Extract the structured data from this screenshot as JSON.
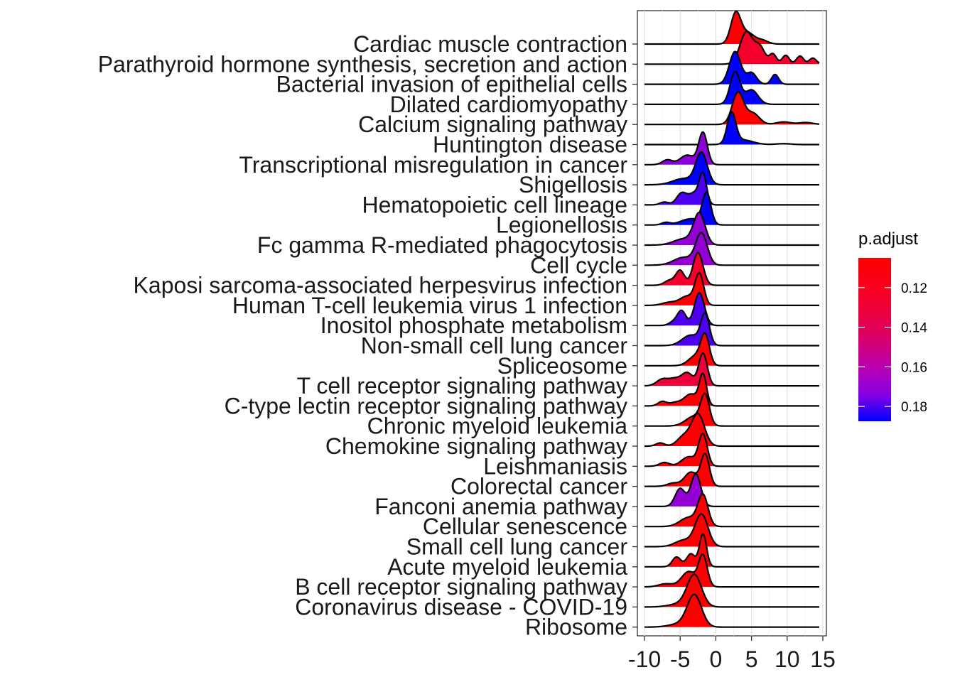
{
  "chart_data": {
    "type": "ridgeline",
    "x_ticks": [
      "-10",
      "-5",
      "0",
      "5",
      "10",
      "15"
    ],
    "x_tick_values": [
      -10,
      -5,
      0,
      5,
      10,
      15
    ],
    "xlim": [
      -11,
      15.5
    ],
    "grid": true,
    "legend": {
      "title": "p.adjust",
      "placement": "right",
      "range": [
        0.105,
        0.1875
      ],
      "ticks": [
        {
          "value": 0.12,
          "label": "0.12"
        },
        {
          "value": 0.14,
          "label": "0.14"
        },
        {
          "value": 0.16,
          "label": "0.16"
        },
        {
          "value": 0.18,
          "label": "0.18"
        }
      ],
      "color_low": "#ff0000",
      "color_high": "#0000ff"
    },
    "rows": [
      {
        "label": "Cardiac muscle contraction",
        "p_adjust": 0.107,
        "peaks": [
          [
            2.8,
            1.0,
            0.7
          ],
          [
            4.5,
            0.35,
            0.9
          ],
          [
            6.5,
            0.12,
            0.8
          ]
        ],
        "range": [
          -10,
          14.5
        ]
      },
      {
        "label": "Parathyroid hormone synthesis, secretion and action",
        "p_adjust": 0.125,
        "peaks": [
          [
            4.3,
            0.8,
            0.9
          ],
          [
            6.2,
            0.4,
            0.7
          ],
          [
            8.0,
            0.25,
            0.5
          ],
          [
            9.8,
            0.22,
            0.5
          ],
          [
            11.8,
            0.2,
            0.5
          ],
          [
            13.6,
            0.15,
            0.5
          ]
        ],
        "range": [
          -10,
          14.5
        ]
      },
      {
        "label": "Bacterial invasion of epithelial cells",
        "p_adjust": 0.188,
        "peaks": [
          [
            2.7,
            1.0,
            0.8
          ],
          [
            5.0,
            0.35,
            0.7
          ],
          [
            8.3,
            0.3,
            0.5
          ]
        ],
        "range": [
          -10,
          14.5
        ]
      },
      {
        "label": "Dilated cardiomyopathy",
        "p_adjust": 0.188,
        "peaks": [
          [
            2.7,
            1.0,
            0.7
          ],
          [
            5.0,
            0.45,
            0.9
          ]
        ],
        "range": [
          -10,
          14.5
        ]
      },
      {
        "label": "Calcium signaling pathway",
        "p_adjust": 0.105,
        "peaks": [
          [
            3.1,
            1.0,
            0.8
          ],
          [
            5.2,
            0.35,
            0.9
          ],
          [
            9.5,
            0.08,
            1.0
          ],
          [
            12.6,
            0.06,
            1.0
          ]
        ],
        "range": [
          -10,
          14.5
        ]
      },
      {
        "label": "Huntington disease",
        "p_adjust": 0.188,
        "peaks": [
          [
            2.2,
            1.0,
            0.6
          ],
          [
            3.8,
            0.15,
            1.4
          ],
          [
            9.5,
            0.03,
            1.0
          ]
        ],
        "range": [
          -10,
          14.5
        ]
      },
      {
        "label": "Transcriptional misregulation in cancer",
        "p_adjust": 0.172,
        "peaks": [
          [
            -1.8,
            1.0,
            0.6
          ],
          [
            -4.0,
            0.3,
            1.0
          ],
          [
            -6.8,
            0.15,
            0.7
          ]
        ],
        "range": [
          -10,
          14.5
        ]
      },
      {
        "label": "Shigellosis",
        "p_adjust": 0.188,
        "peaks": [
          [
            -2.0,
            1.0,
            0.8
          ],
          [
            -4.5,
            0.2,
            1.5
          ]
        ],
        "range": [
          -10,
          14.5
        ]
      },
      {
        "label": "Hematopoietic cell lineage",
        "p_adjust": 0.18,
        "peaks": [
          [
            -1.8,
            1.0,
            0.5
          ],
          [
            -4.8,
            0.4,
            0.7
          ],
          [
            -3.0,
            0.4,
            0.8
          ],
          [
            -7.2,
            0.1,
            0.6
          ]
        ],
        "range": [
          -10,
          14.5
        ]
      },
      {
        "label": "Legionellosis",
        "p_adjust": 0.188,
        "peaks": [
          [
            -1.3,
            1.0,
            0.6
          ],
          [
            -3.5,
            0.2,
            1.4
          ],
          [
            -7.0,
            0.08,
            0.6
          ]
        ],
        "range": [
          -10,
          14.5
        ]
      },
      {
        "label": "Fc gamma R-mediated phagocytosis",
        "p_adjust": 0.17,
        "peaks": [
          [
            -2.3,
            1.0,
            0.8
          ],
          [
            -4.5,
            0.2,
            1.4
          ]
        ],
        "range": [
          -10,
          14.5
        ]
      },
      {
        "label": "Cell cycle",
        "p_adjust": 0.17,
        "peaks": [
          [
            -2.0,
            1.0,
            0.8
          ],
          [
            -4.5,
            0.25,
            1.4
          ]
        ],
        "range": [
          -10,
          14.5
        ]
      },
      {
        "label": "Kaposi sarcoma-associated herpesvirus infection",
        "p_adjust": 0.125,
        "peaks": [
          [
            -2.5,
            1.0,
            0.7
          ],
          [
            -5.0,
            0.45,
            0.6
          ],
          [
            -6.5,
            0.15,
            0.7
          ]
        ],
        "range": [
          -10,
          14.5
        ]
      },
      {
        "label": "Human T-cell leukemia virus 1 infection",
        "p_adjust": 0.107,
        "peaks": [
          [
            -2.3,
            1.0,
            0.6
          ],
          [
            -4.0,
            0.3,
            1.0
          ],
          [
            -6.5,
            0.1,
            1.0
          ]
        ],
        "range": [
          -10,
          14.5
        ]
      },
      {
        "label": "Inositol phosphate metabolism",
        "p_adjust": 0.18,
        "peaks": [
          [
            -2.3,
            1.0,
            0.7
          ],
          [
            -4.8,
            0.45,
            0.6
          ],
          [
            -6.0,
            0.1,
            0.6
          ]
        ],
        "range": [
          -10,
          14.5
        ]
      },
      {
        "label": "Non-small cell lung cancer",
        "p_adjust": 0.18,
        "peaks": [
          [
            -1.5,
            1.0,
            0.6
          ],
          [
            -3.5,
            0.35,
            1.2
          ]
        ],
        "range": [
          -10,
          14.5
        ]
      },
      {
        "label": "Spliceosome",
        "p_adjust": 0.105,
        "peaks": [
          [
            -1.5,
            1.0,
            0.6
          ],
          [
            -2.8,
            0.35,
            1.0
          ]
        ],
        "range": [
          -10,
          14.5
        ]
      },
      {
        "label": "T cell receptor signaling pathway",
        "p_adjust": 0.13,
        "peaks": [
          [
            -1.8,
            1.0,
            0.6
          ],
          [
            -4.0,
            0.4,
            0.8
          ],
          [
            -7.5,
            0.2,
            0.8
          ],
          [
            -5.8,
            0.2,
            0.8
          ]
        ],
        "range": [
          -10,
          14.5
        ]
      },
      {
        "label": "C-type lectin receptor signaling pathway",
        "p_adjust": 0.107,
        "peaks": [
          [
            -1.8,
            1.0,
            0.5
          ],
          [
            -3.5,
            0.4,
            1.0
          ],
          [
            -7.5,
            0.15,
            0.6
          ],
          [
            -5.8,
            0.1,
            0.7
          ]
        ],
        "range": [
          -10,
          14.5
        ]
      },
      {
        "label": "Chronic myeloid leukemia",
        "p_adjust": 0.107,
        "peaks": [
          [
            -1.5,
            1.0,
            0.6
          ],
          [
            -3.0,
            0.35,
            1.2
          ]
        ],
        "range": [
          -10,
          14.5
        ]
      },
      {
        "label": "Chemokine signaling pathway",
        "p_adjust": 0.107,
        "peaks": [
          [
            -2.5,
            1.0,
            0.9
          ],
          [
            -4.5,
            0.3,
            0.9
          ],
          [
            -7.8,
            0.1,
            0.6
          ]
        ],
        "range": [
          -10,
          14.5
        ]
      },
      {
        "label": "Leishmaniasis",
        "p_adjust": 0.107,
        "peaks": [
          [
            -1.8,
            1.0,
            0.6
          ],
          [
            -3.8,
            0.3,
            1.0
          ],
          [
            -7.2,
            0.12,
            0.7
          ]
        ],
        "range": [
          -10,
          14.5
        ]
      },
      {
        "label": "Colorectal cancer",
        "p_adjust": 0.107,
        "peaks": [
          [
            -1.5,
            1.0,
            0.6
          ],
          [
            -3.5,
            0.45,
            0.9
          ],
          [
            -6.0,
            0.1,
            0.8
          ]
        ],
        "range": [
          -10,
          14.5
        ]
      },
      {
        "label": "Fanconi anemia pathway",
        "p_adjust": 0.17,
        "peaks": [
          [
            -2.8,
            1.0,
            0.7
          ],
          [
            -5.0,
            0.55,
            0.7
          ]
        ],
        "range": [
          -10,
          14.5
        ]
      },
      {
        "label": "Cellular senescence",
        "p_adjust": 0.107,
        "peaks": [
          [
            -1.8,
            1.0,
            0.7
          ],
          [
            -3.8,
            0.3,
            1.2
          ]
        ],
        "range": [
          -10,
          14.5
        ]
      },
      {
        "label": "Small cell lung cancer",
        "p_adjust": 0.107,
        "peaks": [
          [
            -2.0,
            1.0,
            0.9
          ],
          [
            -4.5,
            0.2,
            1.2
          ]
        ],
        "range": [
          -10,
          14.5
        ]
      },
      {
        "label": "Acute myeloid leukemia",
        "p_adjust": 0.107,
        "peaks": [
          [
            -1.8,
            1.0,
            0.5
          ],
          [
            -3.5,
            0.4,
            0.6
          ],
          [
            -5.5,
            0.3,
            0.6
          ]
        ],
        "range": [
          -10,
          14.5
        ]
      },
      {
        "label": "B cell receptor signaling pathway",
        "p_adjust": 0.107,
        "peaks": [
          [
            -1.8,
            1.0,
            0.6
          ],
          [
            -3.8,
            0.5,
            1.0
          ],
          [
            -7.0,
            0.1,
            1.0
          ]
        ],
        "range": [
          -10,
          14.5
        ]
      },
      {
        "label": "Coronavirus disease - COVID-19",
        "p_adjust": 0.105,
        "peaks": [
          [
            -3.0,
            1.0,
            1.0
          ],
          [
            -5.0,
            0.1,
            1.5
          ]
        ],
        "range": [
          -10,
          14.5
        ]
      },
      {
        "label": "Ribosome",
        "p_adjust": 0.105,
        "peaks": [
          [
            -3.0,
            1.0,
            1.0
          ],
          [
            -5.0,
            0.1,
            1.5
          ]
        ],
        "range": [
          -10,
          14.5
        ]
      }
    ]
  }
}
